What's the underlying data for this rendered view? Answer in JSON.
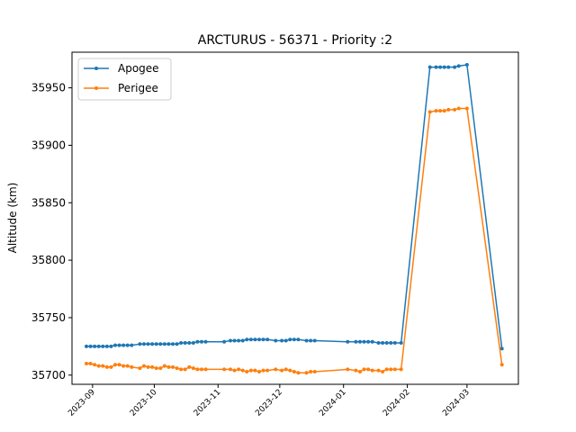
{
  "chart_data": {
    "type": "line",
    "title": "ARCTURUS - 56371 - Priority :2",
    "xlabel": "",
    "ylabel": "Altitude (km)",
    "x_type": "date",
    "xlim": [
      "2023-08-22",
      "2024-03-26"
    ],
    "ylim": [
      35692,
      35981
    ],
    "x_ticks": [
      "2023-09",
      "2023-10",
      "2023-11",
      "2023-12",
      "2024-01",
      "2024-02",
      "2024-03"
    ],
    "y_ticks": [
      35700,
      35750,
      35800,
      35850,
      35900,
      35950
    ],
    "grid": false,
    "legend": "top-left",
    "series": [
      {
        "name": "Apogee",
        "color": "#1f77b4",
        "x": [
          "2023-08-29",
          "2023-08-31",
          "2023-09-02",
          "2023-09-04",
          "2023-09-06",
          "2023-09-08",
          "2023-09-10",
          "2023-09-12",
          "2023-09-14",
          "2023-09-16",
          "2023-09-18",
          "2023-09-20",
          "2023-09-24",
          "2023-09-26",
          "2023-09-28",
          "2023-09-30",
          "2023-10-02",
          "2023-10-04",
          "2023-10-06",
          "2023-10-08",
          "2023-10-10",
          "2023-10-12",
          "2023-10-14",
          "2023-10-16",
          "2023-10-18",
          "2023-10-20",
          "2023-10-22",
          "2023-10-24",
          "2023-10-26",
          "2023-11-04",
          "2023-11-07",
          "2023-11-09",
          "2023-11-11",
          "2023-11-13",
          "2023-11-15",
          "2023-11-17",
          "2023-11-19",
          "2023-11-21",
          "2023-11-23",
          "2023-11-25",
          "2023-11-29",
          "2023-12-02",
          "2023-12-04",
          "2023-12-06",
          "2023-12-08",
          "2023-12-10",
          "2023-12-14",
          "2023-12-16",
          "2023-12-18",
          "2024-01-03",
          "2024-01-07",
          "2024-01-09",
          "2024-01-11",
          "2024-01-13",
          "2024-01-15",
          "2024-01-18",
          "2024-01-20",
          "2024-01-22",
          "2024-01-24",
          "2024-01-26",
          "2024-01-29",
          "2024-02-12",
          "2024-02-15",
          "2024-02-17",
          "2024-02-19",
          "2024-02-21",
          "2024-02-24",
          "2024-02-26",
          "2024-03-01",
          "2024-03-18"
        ],
        "y": [
          35725,
          35725,
          35725,
          35725,
          35725,
          35725,
          35725,
          35726,
          35726,
          35726,
          35726,
          35726,
          35727,
          35727,
          35727,
          35727,
          35727,
          35727,
          35727,
          35727,
          35727,
          35727,
          35728,
          35728,
          35728,
          35728,
          35729,
          35729,
          35729,
          35729,
          35730,
          35730,
          35730,
          35730,
          35731,
          35731,
          35731,
          35731,
          35731,
          35731,
          35730,
          35730,
          35730,
          35731,
          35731,
          35731,
          35730,
          35730,
          35730,
          35729,
          35729,
          35729,
          35729,
          35729,
          35729,
          35728,
          35728,
          35728,
          35728,
          35728,
          35728,
          35968,
          35968,
          35968,
          35968,
          35968,
          35968,
          35969,
          35970,
          35723
        ]
      },
      {
        "name": "Perigee",
        "color": "#ff7f0e",
        "x": [
          "2023-08-29",
          "2023-08-31",
          "2023-09-02",
          "2023-09-04",
          "2023-09-06",
          "2023-09-08",
          "2023-09-10",
          "2023-09-12",
          "2023-09-14",
          "2023-09-16",
          "2023-09-18",
          "2023-09-20",
          "2023-09-24",
          "2023-09-26",
          "2023-09-28",
          "2023-09-30",
          "2023-10-02",
          "2023-10-04",
          "2023-10-06",
          "2023-10-08",
          "2023-10-10",
          "2023-10-12",
          "2023-10-14",
          "2023-10-16",
          "2023-10-18",
          "2023-10-20",
          "2023-10-22",
          "2023-10-24",
          "2023-10-26",
          "2023-11-04",
          "2023-11-07",
          "2023-11-09",
          "2023-11-11",
          "2023-11-13",
          "2023-11-15",
          "2023-11-17",
          "2023-11-19",
          "2023-11-21",
          "2023-11-23",
          "2023-11-25",
          "2023-11-29",
          "2023-12-02",
          "2023-12-04",
          "2023-12-06",
          "2023-12-08",
          "2023-12-10",
          "2023-12-14",
          "2023-12-16",
          "2023-12-18",
          "2024-01-03",
          "2024-01-07",
          "2024-01-09",
          "2024-01-11",
          "2024-01-13",
          "2024-01-15",
          "2024-01-18",
          "2024-01-20",
          "2024-01-22",
          "2024-01-24",
          "2024-01-26",
          "2024-01-29",
          "2024-02-12",
          "2024-02-15",
          "2024-02-17",
          "2024-02-19",
          "2024-02-21",
          "2024-02-24",
          "2024-02-26",
          "2024-03-01",
          "2024-03-18"
        ],
        "y": [
          35710,
          35710,
          35709,
          35708,
          35708,
          35707,
          35707,
          35709,
          35709,
          35708,
          35708,
          35707,
          35706,
          35708,
          35707,
          35707,
          35706,
          35706,
          35708,
          35707,
          35707,
          35706,
          35705,
          35705,
          35707,
          35706,
          35705,
          35705,
          35705,
          35705,
          35705,
          35704,
          35705,
          35704,
          35703,
          35704,
          35704,
          35703,
          35704,
          35704,
          35705,
          35704,
          35705,
          35704,
          35703,
          35702,
          35702,
          35703,
          35703,
          35705,
          35704,
          35703,
          35705,
          35705,
          35704,
          35704,
          35703,
          35705,
          35705,
          35705,
          35705,
          35929,
          35930,
          35930,
          35930,
          35931,
          35931,
          35932,
          35932,
          35709
        ]
      }
    ]
  }
}
